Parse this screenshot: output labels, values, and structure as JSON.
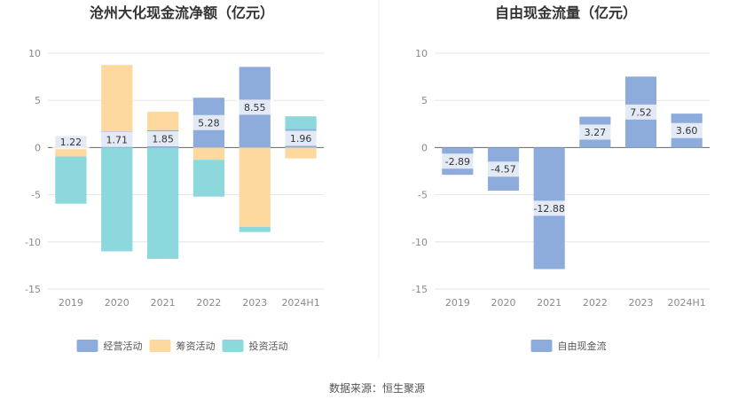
{
  "source": "数据来源：恒生聚源",
  "chart_data": [
    {
      "type": "bar",
      "stacked": true,
      "title": "沧州大化现金流净额（亿元）",
      "categories": [
        "2019",
        "2020",
        "2021",
        "2022",
        "2023",
        "2024H1"
      ],
      "ylim": [
        -15,
        10
      ],
      "yticks": [
        10,
        5,
        0,
        -5,
        -10,
        -15
      ],
      "grid": true,
      "legend_position": "bottom",
      "series": [
        {
          "name": "经营活动",
          "color": "#8eacdb",
          "values": [
            1.22,
            1.71,
            1.85,
            5.28,
            8.55,
            1.96
          ],
          "labeled": true
        },
        {
          "name": "筹资活动",
          "color": "#fdd9a0",
          "values": [
            -0.95,
            7.05,
            1.95,
            -1.3,
            -8.4,
            -1.15
          ],
          "labeled": false
        },
        {
          "name": "投资活动",
          "color": "#8dd8dc",
          "values": [
            -5.0,
            -11.0,
            -11.8,
            -3.9,
            -0.55,
            1.35
          ],
          "labeled": false
        }
      ]
    },
    {
      "type": "bar",
      "title": "自由现金流量（亿元）",
      "categories": [
        "2019",
        "2020",
        "2021",
        "2022",
        "2023",
        "2024H1"
      ],
      "ylim": [
        -15,
        10
      ],
      "yticks": [
        10,
        5,
        0,
        -5,
        -10,
        -15
      ],
      "grid": true,
      "legend_position": "bottom",
      "series": [
        {
          "name": "自由现金流",
          "color": "#8eacdb",
          "values": [
            -2.89,
            -4.57,
            -12.88,
            3.27,
            7.52,
            3.6
          ],
          "labeled": true
        }
      ]
    }
  ]
}
